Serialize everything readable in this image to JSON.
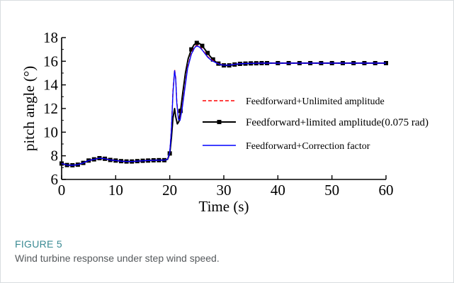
{
  "figure": {
    "label": "FIGURE 5",
    "caption": "Wind turbine response under step wind speed."
  },
  "chart_data": {
    "type": "line",
    "xlabel": "Time (s)",
    "ylabel": "pitch angle (°)",
    "xlim": [
      0,
      60
    ],
    "ylim": [
      6,
      18
    ],
    "xticks": [
      0,
      10,
      20,
      30,
      40,
      50,
      60
    ],
    "yticks": [
      6,
      8,
      10,
      12,
      14,
      16,
      18
    ],
    "legend_position": "center-right",
    "grid": false,
    "series": [
      {
        "name": "Feedforward+Unlimited amplitude",
        "color": "#ff0000",
        "style": "dashed",
        "marker": "none",
        "x": [
          0,
          1,
          2,
          3,
          4,
          5,
          6,
          7,
          8,
          9,
          10,
          11,
          12,
          13,
          14,
          15,
          16,
          17,
          18,
          19,
          19.6,
          20,
          20.3,
          20.6,
          20.9,
          21.1,
          21.3,
          21.6,
          21.9,
          22.3,
          22.8,
          23.3,
          24,
          24.6,
          25,
          25.5,
          26,
          26.5,
          27,
          27.5,
          28,
          28.5,
          29,
          29.5,
          30,
          31,
          32,
          33,
          34,
          35,
          36,
          37,
          38,
          40,
          42,
          44,
          46,
          48,
          50,
          52,
          54,
          56,
          58,
          60
        ],
        "y": [
          7.35,
          7.22,
          7.2,
          7.25,
          7.4,
          7.6,
          7.7,
          7.8,
          7.75,
          7.65,
          7.6,
          7.55,
          7.52,
          7.52,
          7.55,
          7.58,
          7.6,
          7.62,
          7.63,
          7.63,
          7.7,
          8.3,
          10.3,
          13.5,
          15.3,
          14.6,
          12.6,
          11.2,
          11.1,
          12.1,
          13.8,
          15.5,
          16.7,
          17.2,
          17.35,
          17.25,
          17.0,
          16.7,
          16.4,
          16.2,
          16.05,
          15.9,
          15.8,
          15.72,
          15.68,
          15.68,
          15.75,
          15.8,
          15.82,
          15.83,
          15.84,
          15.84,
          15.84,
          15.84,
          15.84,
          15.84,
          15.84,
          15.84,
          15.84,
          15.84,
          15.84,
          15.84,
          15.84,
          15.84
        ]
      },
      {
        "name": "Feedforward+limited amplitude(0.075 rad)",
        "color": "#000000",
        "style": "solid",
        "marker": "square",
        "x": [
          0,
          1,
          2,
          3,
          4,
          5,
          6,
          7,
          8,
          9,
          10,
          11,
          12,
          13,
          14,
          15,
          16,
          17,
          18,
          19,
          19.6,
          20,
          20.3,
          20.6,
          20.9,
          21.1,
          21.4,
          21.7,
          22,
          22.4,
          22.9,
          23.4,
          24,
          24.5,
          25,
          25.5,
          26,
          26.5,
          27,
          27.5,
          28,
          28.5,
          29,
          29.5,
          30,
          31,
          32,
          33,
          34,
          35,
          36,
          37,
          38,
          40,
          42,
          44,
          46,
          48,
          50,
          52,
          54,
          56,
          58,
          60
        ],
        "y": [
          7.35,
          7.22,
          7.2,
          7.25,
          7.4,
          7.6,
          7.7,
          7.8,
          7.75,
          7.65,
          7.6,
          7.55,
          7.52,
          7.52,
          7.55,
          7.58,
          7.6,
          7.62,
          7.63,
          7.63,
          7.7,
          8.2,
          9.5,
          11.2,
          12.0,
          11.3,
          10.7,
          10.9,
          11.8,
          13.3,
          15.0,
          16.2,
          17.0,
          17.4,
          17.55,
          17.5,
          17.3,
          17.0,
          16.7,
          16.4,
          16.15,
          15.95,
          15.8,
          15.7,
          15.65,
          15.65,
          15.72,
          15.78,
          15.8,
          15.82,
          15.83,
          15.84,
          15.84,
          15.84,
          15.84,
          15.84,
          15.84,
          15.84,
          15.84,
          15.84,
          15.84,
          15.84,
          15.84,
          15.84
        ]
      },
      {
        "name": "Feedforward+Correction factor",
        "color": "#0000ff",
        "style": "solid",
        "marker": "none",
        "x": [
          0,
          1,
          2,
          3,
          4,
          5,
          6,
          7,
          8,
          9,
          10,
          11,
          12,
          13,
          14,
          15,
          16,
          17,
          18,
          19,
          19.6,
          20,
          20.3,
          20.6,
          20.9,
          21.1,
          21.3,
          21.6,
          21.9,
          22.3,
          22.8,
          23.3,
          24,
          24.6,
          25,
          25.5,
          26,
          26.5,
          27,
          27.5,
          28,
          28.5,
          29,
          29.5,
          30,
          31,
          32,
          33,
          34,
          35,
          36,
          37,
          38,
          40,
          42,
          44,
          46,
          48,
          50,
          52,
          54,
          56,
          58,
          60
        ],
        "y": [
          7.35,
          7.22,
          7.2,
          7.25,
          7.4,
          7.6,
          7.7,
          7.8,
          7.75,
          7.65,
          7.6,
          7.55,
          7.52,
          7.52,
          7.55,
          7.58,
          7.6,
          7.62,
          7.63,
          7.63,
          7.7,
          8.3,
          10.2,
          13.3,
          15.2,
          14.5,
          12.5,
          11.1,
          11.0,
          12.0,
          13.7,
          15.4,
          16.6,
          17.15,
          17.3,
          17.2,
          16.95,
          16.65,
          16.35,
          16.15,
          16.0,
          15.88,
          15.78,
          15.7,
          15.67,
          15.67,
          15.74,
          15.79,
          15.81,
          15.82,
          15.83,
          15.84,
          15.84,
          15.84,
          15.84,
          15.84,
          15.84,
          15.84,
          15.84,
          15.84,
          15.84,
          15.84,
          15.84,
          15.84
        ]
      }
    ]
  }
}
